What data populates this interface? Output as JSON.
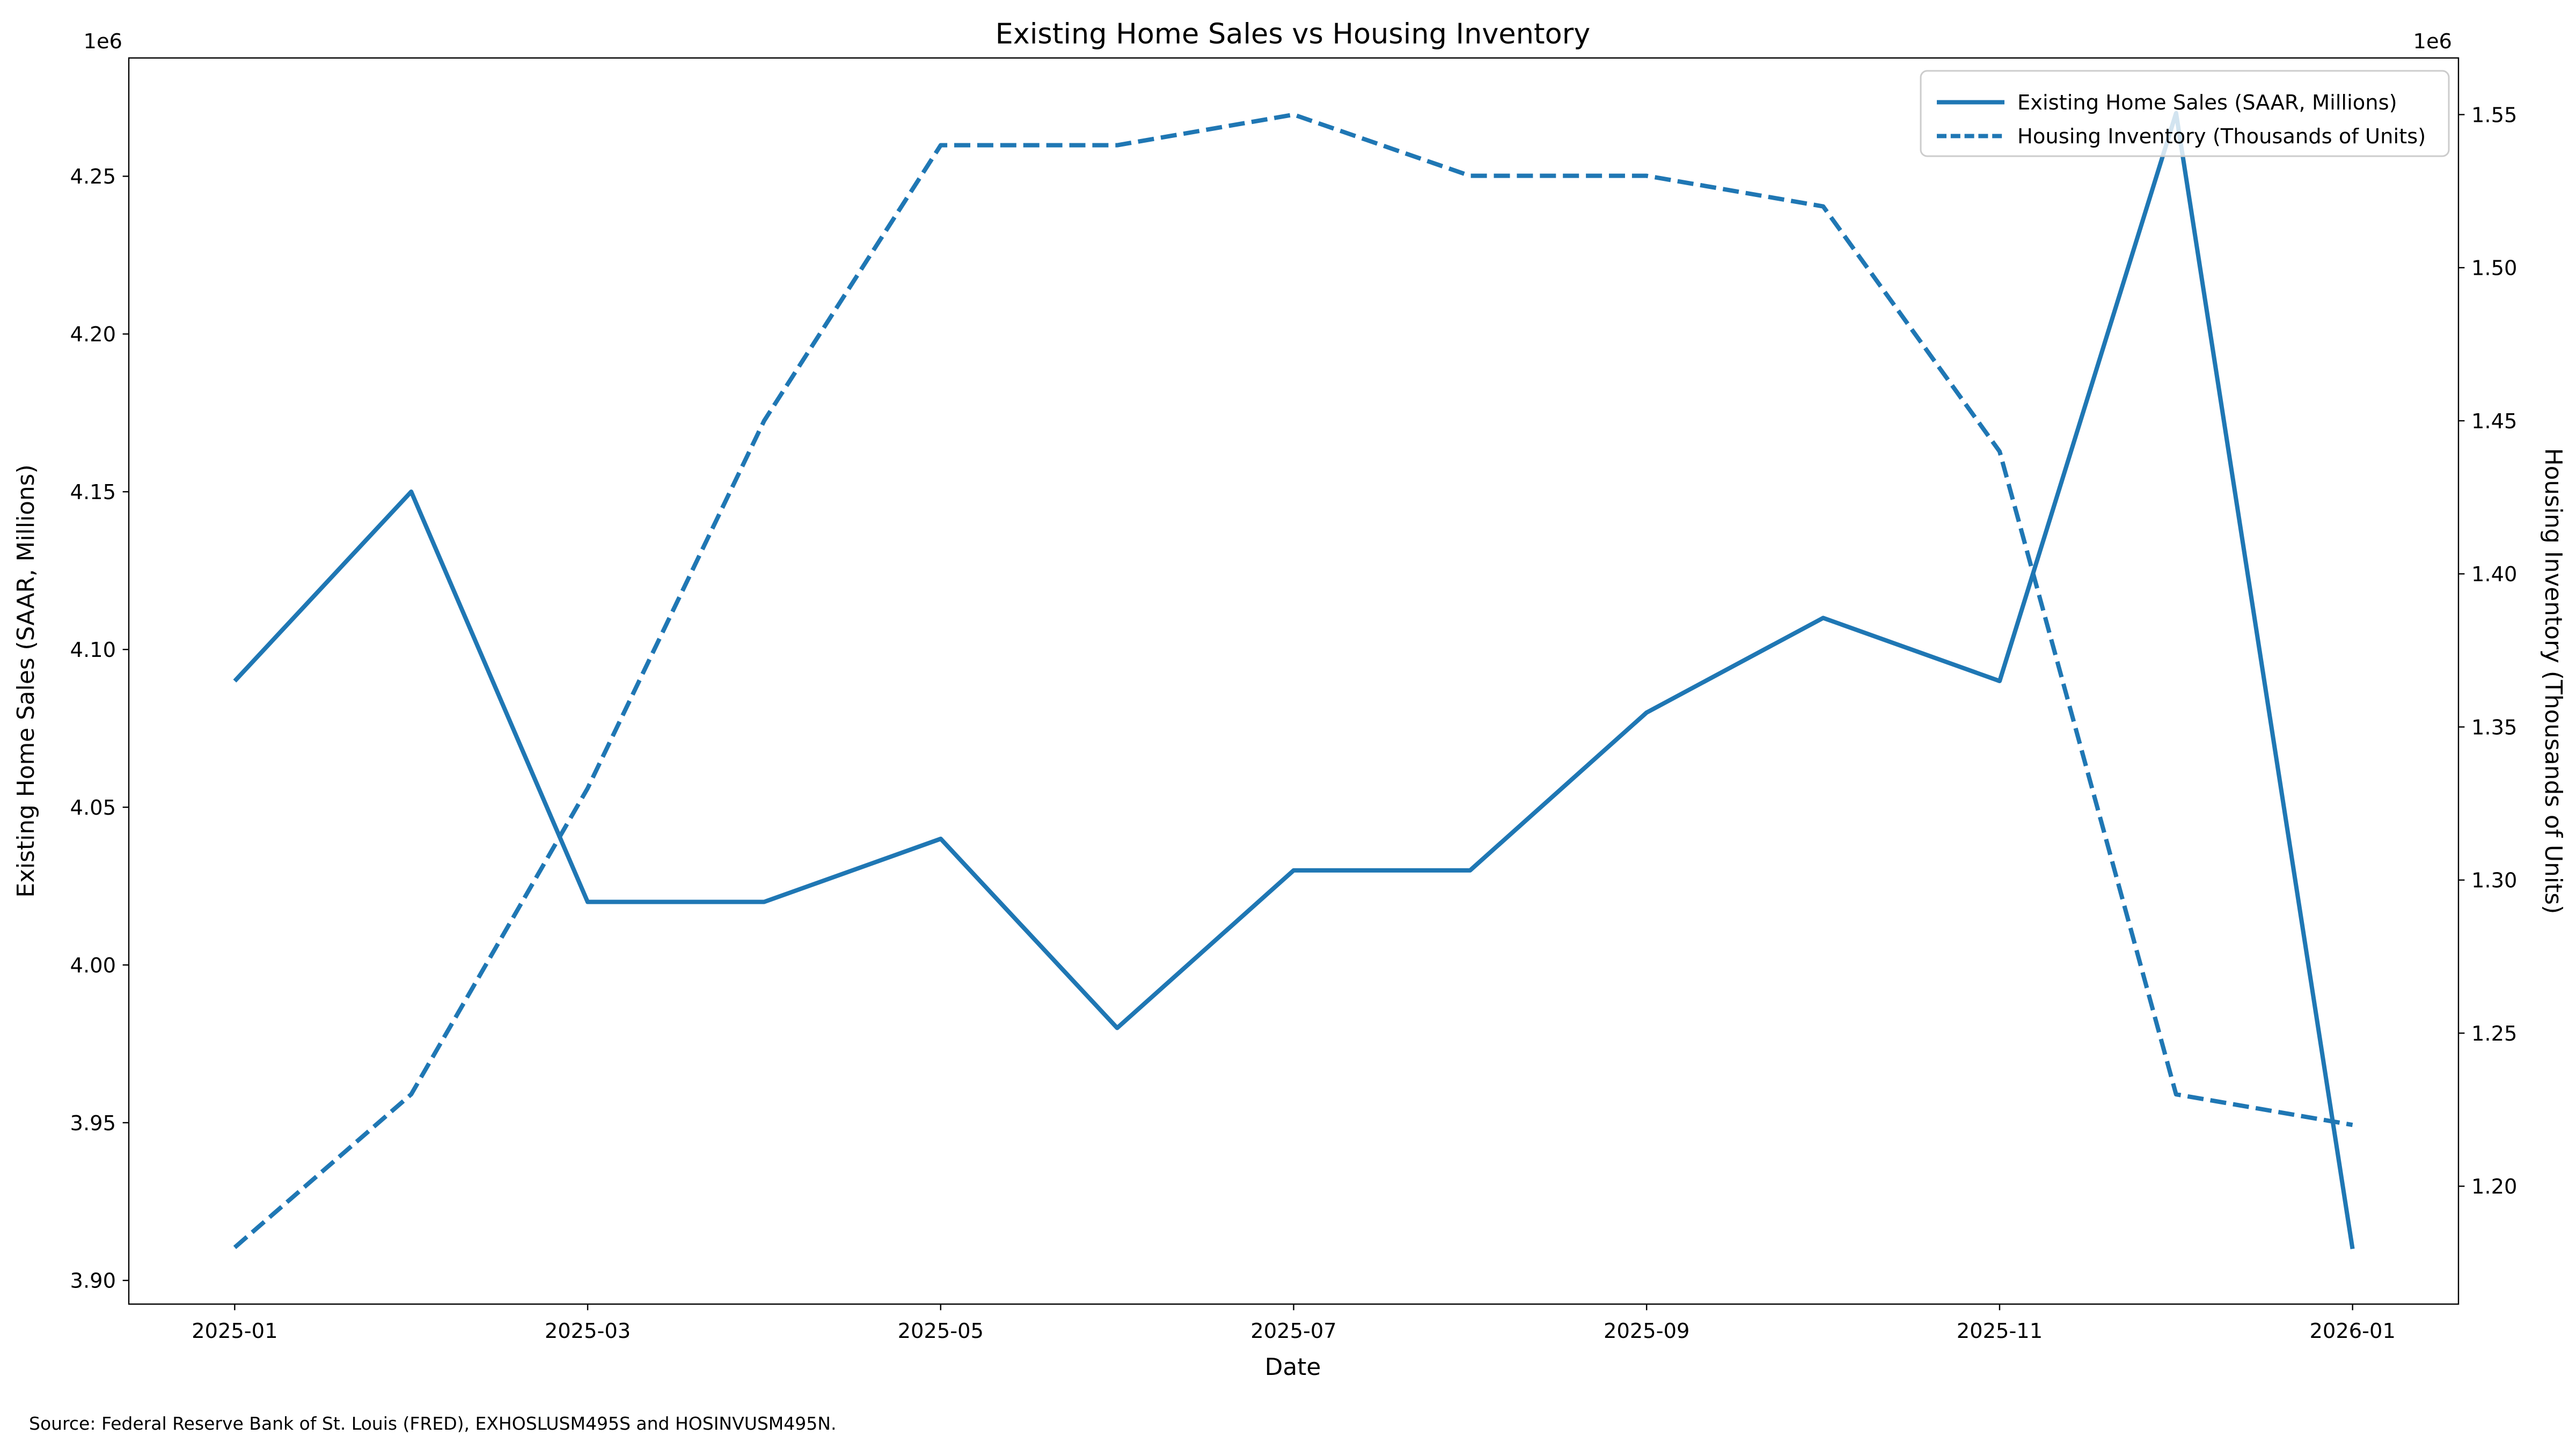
{
  "title": "Existing Home Sales vs Housing Inventory",
  "xlabel": "Date",
  "ylabel_left": "Existing Home Sales (SAAR, Millions)",
  "ylabel_right": "Housing Inventory (Thousands of Units)",
  "offset_label_left": "1e6",
  "offset_label_right": "1e6",
  "source_note": "Source: Federal Reserve Bank of St. Louis (FRED), EXHOSLUSM495S and HOSINVUSM495N.",
  "accent_color": "#1f77b4",
  "legend": {
    "entries": [
      {
        "label": "Existing Home Sales (SAAR, Millions)",
        "style": "solid"
      },
      {
        "label": "Housing Inventory (Thousands of Units)",
        "style": "dashed"
      }
    ]
  },
  "chart_data": {
    "type": "line",
    "title": "Existing Home Sales vs Housing Inventory",
    "xlabel": "Date",
    "grid": false,
    "legend_position": "upper right",
    "line_color": "#1f77b4",
    "x": [
      "2025-01",
      "2025-02",
      "2025-03",
      "2025-04",
      "2025-05",
      "2025-06",
      "2025-07",
      "2025-08",
      "2025-09",
      "2025-10",
      "2025-11",
      "2025-12",
      "2026-01"
    ],
    "x_tick_indices": [
      0,
      2,
      4,
      6,
      8,
      10,
      12
    ],
    "series": [
      {
        "name": "Existing Home Sales (SAAR, Millions)",
        "axis": "left",
        "line_style": "solid",
        "values": [
          4090000,
          4150000,
          4020000,
          4020000,
          4040000,
          3980000,
          4030000,
          4030000,
          4080000,
          4110000,
          4090000,
          4270000,
          3910000
        ]
      },
      {
        "name": "Housing Inventory (Thousands of Units)",
        "axis": "right",
        "line_style": "dashed",
        "values": [
          1180000,
          1230000,
          1330000,
          1450000,
          1540000,
          1540000,
          1550000,
          1530000,
          1530000,
          1520000,
          1440000,
          1230000,
          1220000
        ]
      }
    ],
    "left_axis": {
      "label": "Existing Home Sales (SAAR, Millions)",
      "offset_text": "1e6",
      "ticks": [
        3900000,
        3950000,
        4000000,
        4050000,
        4100000,
        4150000,
        4200000,
        4250000
      ],
      "lim": [
        3892500,
        4287500
      ]
    },
    "right_axis": {
      "label": "Housing Inventory (Thousands of Units)",
      "offset_text": "1e6",
      "ticks": [
        1200000,
        1250000,
        1300000,
        1350000,
        1400000,
        1450000,
        1500000,
        1550000
      ],
      "lim": [
        1161500,
        1568500
      ]
    }
  }
}
